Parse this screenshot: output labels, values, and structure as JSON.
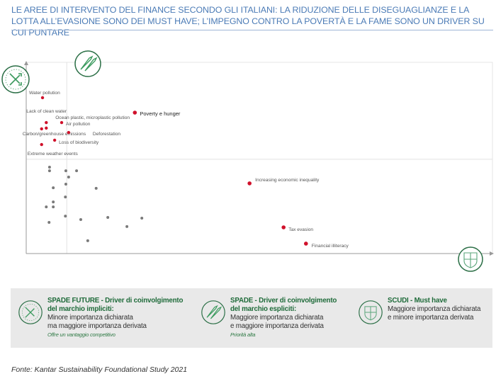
{
  "title": "Le aree di intervento del finance secondo gli italiani: la riduzione delle diseguaglianze e la lotta all’evasione sono dei must have; l’impegno contro la povertà e la fame sono un driver su cui puntare",
  "colors": {
    "title": "#4b7bb6",
    "highlight": "#d0112b",
    "other": "#7a7a7a",
    "icon_green": "#2f8a55",
    "legend_bg": "#e9e9e9"
  },
  "chart_data": {
    "type": "scatter",
    "title": "",
    "xlabel": "",
    "ylabel": "",
    "xlim": [
      0,
      100
    ],
    "ylim": [
      0,
      100
    ],
    "grid": false,
    "quadrant_dividers": {
      "x": 8.7,
      "y": 49.3
    },
    "quadrant_icons": [
      "spade-future-icon (top-left)",
      "spade-icon (top)",
      "shield-icon (bottom-right)"
    ],
    "labeled_points": [
      {
        "label": "Water pollution",
        "x": 3.5,
        "y": 81.5
      },
      {
        "label": "Lack of clean water",
        "x": 4.3,
        "y": 68.5
      },
      {
        "label": "Ocean plastic, microplastic pollution",
        "x": 4.3,
        "y": 65.6
      },
      {
        "label": "Air pollution",
        "x": 7.6,
        "y": 68.5
      },
      {
        "label": "Carbon/greenhouse emissions",
        "x": 3.3,
        "y": 65.2
      },
      {
        "label": "Deforestation",
        "x": 9.1,
        "y": 63.3
      },
      {
        "label": "Loss of biodiversity",
        "x": 6.1,
        "y": 59.3
      },
      {
        "label": "Extreme weather events",
        "x": 3.3,
        "y": 57.0
      },
      {
        "label": "Poverty e hunger",
        "x": 23.3,
        "y": 73.7
      },
      {
        "label": "Increasing economic inequality",
        "x": 47.9,
        "y": 36.7
      },
      {
        "label": "Tax evasion",
        "x": 55.2,
        "y": 13.7
      },
      {
        "label": "Financial illiteracy",
        "x": 60.0,
        "y": 5.2
      }
    ],
    "other_points": [
      {
        "x": 5.0,
        "y": 45.2
      },
      {
        "x": 5.0,
        "y": 43.3
      },
      {
        "x": 8.5,
        "y": 43.3
      },
      {
        "x": 10.8,
        "y": 43.3
      },
      {
        "x": 9.1,
        "y": 40.0
      },
      {
        "x": 8.5,
        "y": 36.3
      },
      {
        "x": 5.8,
        "y": 34.4
      },
      {
        "x": 15.0,
        "y": 34.1
      },
      {
        "x": 8.4,
        "y": 29.6
      },
      {
        "x": 5.8,
        "y": 27.0
      },
      {
        "x": 4.3,
        "y": 24.4
      },
      {
        "x": 5.8,
        "y": 24.4
      },
      {
        "x": 8.4,
        "y": 19.6
      },
      {
        "x": 4.9,
        "y": 16.3
      },
      {
        "x": 11.7,
        "y": 17.8
      },
      {
        "x": 17.5,
        "y": 18.9
      },
      {
        "x": 24.8,
        "y": 18.5
      },
      {
        "x": 21.6,
        "y": 14.1
      },
      {
        "x": 13.2,
        "y": 6.7
      }
    ]
  },
  "legend": [
    {
      "heading1": "SPADE FUTURE - Driver di coinvolgimento",
      "heading2": "del marchio impliciti:",
      "line1": "Minore importanza dichiarata",
      "line2": "ma maggiore importanza derivata",
      "note": "Offre un vantaggio competitivo"
    },
    {
      "heading1": "SPADE - Driver di coinvolgimento",
      "heading2": "del marchio espliciti:",
      "line1": "Maggiore importanza dichiarata",
      "line2": "e maggiore importanza derivata",
      "note": "Priorità alta"
    },
    {
      "heading1": "SCUDI - Must have",
      "heading2": "",
      "line1": "Maggiore importanza dichiarata",
      "line2": "e minore importanza derivata",
      "note": ""
    }
  ],
  "source": "Fonte: Kantar Sustainability Foundational Study 2021"
}
